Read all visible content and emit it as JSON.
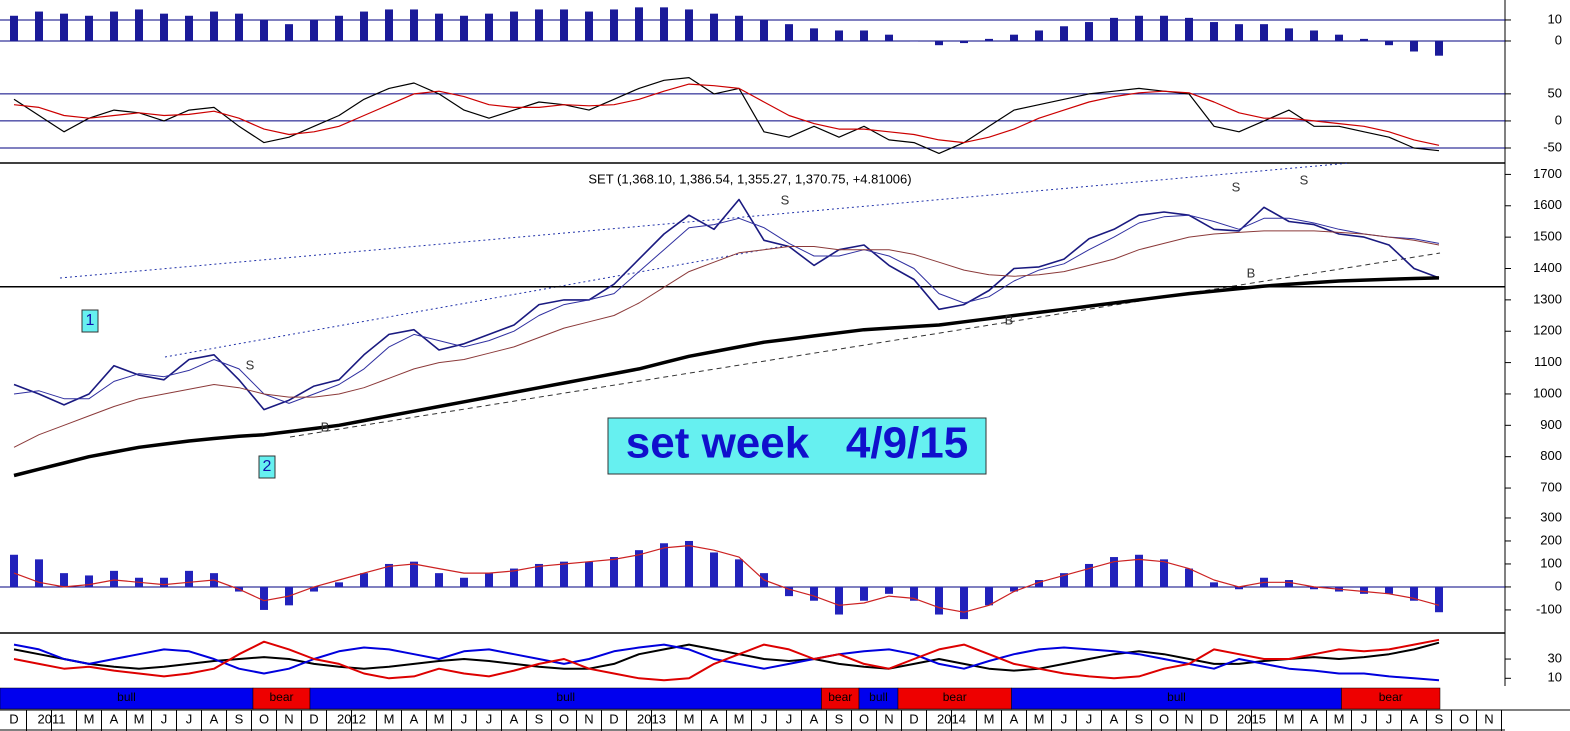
{
  "chart_data": [
    {
      "type": "bar",
      "ylim": [
        -10,
        19.5
      ],
      "yticks": [
        10,
        0
      ],
      "grid": true,
      "grid_color": "#000080",
      "series": [
        {
          "color": "#1a1a99",
          "values": [
            12,
            14,
            13,
            12,
            14,
            15,
            13,
            12,
            14,
            13,
            10,
            8,
            10,
            12,
            14,
            15,
            15,
            13,
            12,
            13,
            14,
            15,
            15,
            14,
            15,
            16,
            16,
            15,
            13,
            12,
            10,
            8,
            6,
            5,
            5,
            3,
            0,
            -2,
            -1,
            1,
            3,
            5,
            7,
            9,
            11,
            12,
            12,
            11,
            9,
            8,
            8,
            6,
            5,
            3,
            1,
            -2,
            -5,
            -7
          ]
        }
      ]
    },
    {
      "type": "line",
      "ylim": [
        -74,
        107
      ],
      "yticks": [
        50,
        0,
        -50
      ],
      "grid": true,
      "grid_color": "#000080",
      "series": [
        {
          "color": "#000000",
          "values": [
            40,
            10,
            -20,
            5,
            20,
            15,
            0,
            20,
            25,
            -10,
            -40,
            -30,
            -10,
            10,
            40,
            60,
            70,
            50,
            20,
            5,
            20,
            35,
            30,
            20,
            40,
            60,
            75,
            80,
            50,
            60,
            -20,
            -30,
            -10,
            -30,
            -10,
            -35,
            -40,
            -60,
            -40,
            -10,
            20,
            30,
            40,
            50,
            55,
            60,
            55,
            50,
            -10,
            -20,
            0,
            20,
            -10,
            -10,
            -20,
            -30,
            -50,
            -55
          ]
        },
        {
          "color": "#cc0000",
          "values": [
            30,
            25,
            10,
            5,
            10,
            15,
            10,
            12,
            18,
            5,
            -15,
            -25,
            -20,
            -10,
            10,
            30,
            50,
            55,
            45,
            30,
            25,
            25,
            30,
            28,
            30,
            40,
            55,
            68,
            65,
            60,
            35,
            10,
            -5,
            -15,
            -15,
            -20,
            -25,
            -35,
            -40,
            -30,
            -15,
            5,
            20,
            35,
            45,
            52,
            55,
            52,
            35,
            15,
            5,
            5,
            0,
            -5,
            -10,
            -20,
            -35,
            -45
          ]
        }
      ]
    },
    {
      "type": "line",
      "title": "SET (1,368.10, 1,386.54, 1,355.27, 1,370.75, +4.81006)",
      "annotation": "set week   4/9/15",
      "channel_labels": [
        "1",
        "2"
      ],
      "signals": [
        "S",
        "S",
        "S",
        "S",
        "B",
        "B",
        "B"
      ],
      "ylim": [
        630,
        1730
      ],
      "yticks": [
        1700,
        1600,
        1500,
        1400,
        1300,
        1200,
        1100,
        1000,
        900,
        800,
        700
      ],
      "grid": false,
      "hline": 1342,
      "series": [
        {
          "color": "#1a1a80",
          "width": 1.6,
          "values": [
            1030,
            1000,
            965,
            1000,
            1090,
            1060,
            1045,
            1110,
            1125,
            1045,
            950,
            980,
            1025,
            1045,
            1125,
            1190,
            1205,
            1140,
            1160,
            1190,
            1220,
            1285,
            1300,
            1300,
            1350,
            1430,
            1510,
            1570,
            1525,
            1620,
            1490,
            1470,
            1410,
            1460,
            1475,
            1410,
            1365,
            1270,
            1285,
            1330,
            1400,
            1405,
            1430,
            1495,
            1525,
            1570,
            1580,
            1570,
            1525,
            1520,
            1595,
            1550,
            1540,
            1510,
            1500,
            1475,
            1400,
            1370
          ]
        },
        {
          "color": "#3030a0",
          "width": 1,
          "values": [
            1000,
            1010,
            985,
            985,
            1040,
            1065,
            1055,
            1075,
            1110,
            1080,
            1000,
            970,
            1000,
            1030,
            1080,
            1150,
            1190,
            1170,
            1150,
            1170,
            1200,
            1250,
            1285,
            1300,
            1320,
            1390,
            1460,
            1530,
            1540,
            1560,
            1530,
            1480,
            1440,
            1440,
            1460,
            1440,
            1400,
            1320,
            1290,
            1310,
            1360,
            1395,
            1415,
            1460,
            1500,
            1545,
            1565,
            1570,
            1550,
            1525,
            1560,
            1560,
            1545,
            1525,
            1510,
            1500,
            1495,
            1480
          ]
        },
        {
          "color": "#8b3a3a",
          "width": 1,
          "values": [
            830,
            870,
            900,
            930,
            960,
            985,
            1000,
            1015,
            1030,
            1020,
            1000,
            990,
            990,
            1000,
            1020,
            1050,
            1080,
            1100,
            1110,
            1130,
            1150,
            1180,
            1210,
            1230,
            1250,
            1290,
            1340,
            1390,
            1420,
            1450,
            1460,
            1470,
            1470,
            1460,
            1460,
            1460,
            1445,
            1420,
            1395,
            1380,
            1375,
            1380,
            1390,
            1410,
            1430,
            1460,
            1480,
            1500,
            1510,
            1515,
            1520,
            1520,
            1520,
            1515,
            1510,
            1500,
            1490,
            1475
          ]
        },
        {
          "color": "#000000",
          "width": 3.5,
          "values": [
            740,
            760,
            780,
            800,
            815,
            830,
            840,
            850,
            858,
            865,
            870,
            880,
            890,
            900,
            915,
            930,
            945,
            960,
            975,
            990,
            1005,
            1020,
            1035,
            1050,
            1065,
            1080,
            1100,
            1120,
            1135,
            1150,
            1165,
            1175,
            1185,
            1195,
            1205,
            1210,
            1215,
            1220,
            1230,
            1240,
            1250,
            1260,
            1270,
            1280,
            1290,
            1300,
            1310,
            1320,
            1328,
            1336,
            1344,
            1350,
            1355,
            1360,
            1363,
            1366,
            1368,
            1370
          ]
        }
      ]
    },
    {
      "type": "combo",
      "ylim": [
        -196,
        326
      ],
      "yticks": [
        300,
        200,
        100,
        0,
        -100
      ],
      "grid": false,
      "zero_line": true,
      "series": [
        {
          "type": "bar",
          "color": "#2222bb",
          "values": [
            140,
            120,
            60,
            50,
            70,
            40,
            40,
            70,
            60,
            -20,
            -100,
            -80,
            -20,
            20,
            60,
            100,
            110,
            60,
            40,
            60,
            80,
            100,
            110,
            110,
            130,
            160,
            190,
            200,
            150,
            120,
            60,
            -40,
            -60,
            -120,
            -60,
            -30,
            -60,
            -120,
            -140,
            -80,
            -20,
            30,
            60,
            100,
            130,
            140,
            120,
            80,
            20,
            -10,
            40,
            30,
            -10,
            -20,
            -30,
            -30,
            -60,
            -110
          ]
        },
        {
          "type": "line",
          "color": "#cc2222",
          "values": [
            60,
            20,
            0,
            10,
            30,
            20,
            10,
            20,
            30,
            -10,
            -60,
            -40,
            0,
            30,
            60,
            90,
            100,
            80,
            60,
            60,
            70,
            90,
            100,
            110,
            120,
            140,
            170,
            180,
            160,
            130,
            30,
            -10,
            -40,
            -80,
            -70,
            -40,
            -50,
            -90,
            -110,
            -80,
            -20,
            20,
            50,
            80,
            110,
            120,
            110,
            80,
            30,
            0,
            20,
            20,
            0,
            -10,
            -20,
            -30,
            -50,
            -80
          ]
        }
      ]
    },
    {
      "type": "line",
      "ylim": [
        2,
        56
      ],
      "yticks": [
        30,
        10
      ],
      "grid": false,
      "series": [
        {
          "color": "#000000",
          "width": 2,
          "values": [
            40,
            35,
            30,
            25,
            22,
            20,
            22,
            25,
            28,
            30,
            32,
            30,
            25,
            22,
            20,
            22,
            25,
            28,
            30,
            28,
            25,
            22,
            20,
            20,
            25,
            35,
            40,
            45,
            40,
            35,
            30,
            28,
            30,
            25,
            22,
            20,
            25,
            30,
            25,
            20,
            18,
            20,
            25,
            30,
            35,
            38,
            35,
            30,
            25,
            25,
            28,
            30,
            32,
            30,
            32,
            35,
            40,
            47
          ]
        },
        {
          "color": "#0000dd",
          "width": 2,
          "values": [
            45,
            40,
            30,
            25,
            30,
            35,
            40,
            38,
            30,
            20,
            15,
            20,
            30,
            38,
            42,
            40,
            35,
            30,
            38,
            40,
            35,
            30,
            25,
            30,
            38,
            42,
            45,
            40,
            30,
            25,
            20,
            25,
            30,
            35,
            38,
            40,
            35,
            25,
            20,
            28,
            35,
            40,
            42,
            40,
            38,
            35,
            30,
            25,
            20,
            30,
            25,
            20,
            18,
            15,
            15,
            12,
            10,
            8
          ]
        },
        {
          "color": "#dd0000",
          "width": 2,
          "values": [
            30,
            25,
            20,
            22,
            18,
            15,
            12,
            15,
            20,
            35,
            48,
            40,
            30,
            25,
            15,
            10,
            12,
            20,
            15,
            12,
            18,
            25,
            30,
            20,
            15,
            10,
            8,
            10,
            25,
            35,
            45,
            40,
            30,
            35,
            25,
            20,
            30,
            40,
            45,
            35,
            25,
            20,
            15,
            12,
            10,
            12,
            20,
            25,
            40,
            35,
            30,
            30,
            35,
            40,
            38,
            40,
            45,
            50
          ]
        }
      ]
    }
  ],
  "regimes": [
    {
      "label": "bull",
      "from": -0.56,
      "to": 9.56,
      "color": "#0000ee"
    },
    {
      "label": "bear",
      "from": 9.56,
      "to": 11.84,
      "color": "#ee0000"
    },
    {
      "label": "bull",
      "from": 11.84,
      "to": 32.3,
      "color": "#0000ee"
    },
    {
      "label": "bear",
      "from": 32.3,
      "to": 33.8,
      "color": "#ee0000"
    },
    {
      "label": "bull",
      "from": 33.8,
      "to": 35.36,
      "color": "#0000ee"
    },
    {
      "label": "bear",
      "from": 35.36,
      "to": 39.9,
      "color": "#ee0000"
    },
    {
      "label": "bull",
      "from": 39.9,
      "to": 53.1,
      "color": "#0000ee"
    },
    {
      "label": "bear",
      "from": 53.1,
      "to": 57.04,
      "color": "#ee0000"
    }
  ],
  "time_axis": {
    "categories": [
      "D",
      "2011",
      null,
      "M",
      "A",
      "M",
      "J",
      "J",
      "A",
      "S",
      "O",
      "N",
      "D",
      "2012",
      null,
      "M",
      "A",
      "M",
      "J",
      "J",
      "A",
      "S",
      "O",
      "N",
      "D",
      "2013",
      null,
      "M",
      "A",
      "M",
      "J",
      "J",
      "A",
      "S",
      "O",
      "N",
      "D",
      "2014",
      null,
      "M",
      "A",
      "M",
      "J",
      "J",
      "A",
      "S",
      "O",
      "N",
      "D",
      "2015",
      null,
      "M",
      "A",
      "M",
      "J",
      "J",
      "A",
      "S",
      "O",
      "N"
    ]
  }
}
